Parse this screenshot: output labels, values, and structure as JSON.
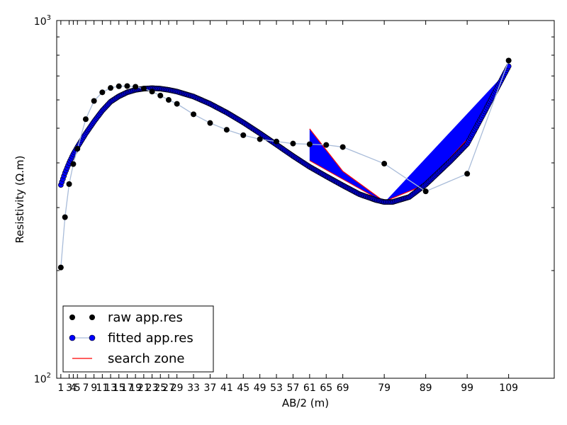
{
  "chart_data": {
    "type": "line",
    "xlabel": "AB/2 (m)",
    "ylabel": "Resistivity (Ω.m)",
    "x_axis": {
      "range": [
        0,
        120
      ],
      "tick_values": [
        1,
        3,
        4,
        5,
        7,
        9,
        11,
        13,
        15,
        17,
        19,
        21,
        23,
        25,
        27,
        29,
        33,
        37,
        41,
        45,
        49,
        53,
        57,
        61,
        65,
        69,
        79,
        89,
        99,
        109
      ],
      "tick_labels": [
        "1",
        "3",
        "4",
        "5",
        "7",
        "9",
        "11",
        "13",
        "15",
        "17",
        "19",
        "21",
        "23",
        "25",
        "27",
        "29",
        "33",
        "37",
        "41",
        "45",
        "49",
        "53",
        "57",
        "61",
        "65",
        "69",
        "79",
        "89",
        "99",
        "109"
      ]
    },
    "y_axis": {
      "scale": "log",
      "range": [
        100,
        1000
      ],
      "major_labels": [
        {
          "value": 100,
          "base": "10",
          "exp": "2"
        },
        {
          "value": 1000,
          "base": "10",
          "exp": "3"
        }
      ],
      "minor_ticks": [
        200,
        300,
        400,
        500,
        600,
        700,
        800,
        900
      ]
    },
    "legend": {
      "placement": "lower-left",
      "entries": [
        "raw app.res",
        "fitted app.res",
        "search zone"
      ]
    },
    "series": [
      {
        "name": "raw app.res",
        "style": "black markers",
        "color": "#000000",
        "x": [
          1,
          2,
          3,
          4,
          5,
          7,
          9,
          11,
          13,
          15,
          17,
          19,
          21,
          23,
          25,
          27,
          29,
          33,
          37,
          41,
          45,
          49,
          53,
          57,
          61,
          65,
          69,
          79,
          89,
          99,
          109
        ],
        "y": [
          204,
          282,
          349,
          397,
          438,
          530,
          596,
          630,
          648,
          655,
          656,
          653,
          645,
          633,
          617,
          600,
          585,
          547,
          517,
          495,
          478,
          466,
          459,
          453,
          451,
          449,
          443,
          398,
          333,
          373,
          773
        ]
      },
      {
        "name": "fitted app.res",
        "style": "blue markers on line",
        "color": "#0000ff",
        "x": [
          1,
          2,
          3,
          4,
          5,
          7,
          9,
          11,
          13,
          15,
          17,
          19,
          21,
          23,
          25,
          27,
          29,
          33,
          37,
          41,
          45,
          49,
          53,
          57,
          61,
          65,
          69,
          73,
          77,
          79,
          81,
          85,
          89,
          95,
          99,
          103,
          109
        ],
        "y": [
          347,
          375,
          400,
          423,
          443,
          483,
          522,
          560,
          593,
          614,
          630,
          640,
          645,
          647,
          645,
          640,
          633,
          613,
          585,
          553,
          519,
          484,
          450,
          418,
          390,
          367,
          346,
          327,
          315,
          311,
          311,
          321,
          348,
          405,
          452,
          550,
          745
        ]
      },
      {
        "name": "search zone",
        "style": "red outline, blue filled band",
        "color": "#ff0000",
        "upper": {
          "x": [
            61,
            69,
            79,
            89,
            99,
            109
          ],
          "y": [
            498,
            379,
            312,
            348,
            465,
            730
          ]
        },
        "lower": {
          "x": [
            61,
            79
          ],
          "y": [
            406,
            310
          ]
        }
      }
    ]
  }
}
